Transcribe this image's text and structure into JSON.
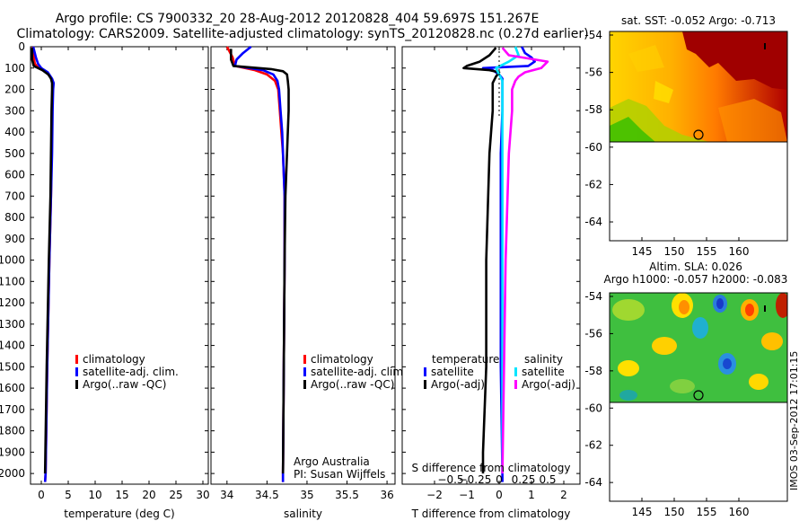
{
  "header": {
    "line1": "Argo profile: CS 7900332_20 28-Aug-2012 20120828_404 59.697S 151.267E",
    "line2": "Climatology: CARS2009. Satellite-adjusted climatology: synTS_20120828.nc (0.27d earlier)"
  },
  "colors": {
    "clim": "#ff0000",
    "sat": "#0000ff",
    "argo": "#000000",
    "sat_s": "#00e5ff",
    "argo_s": "#ff00ff"
  },
  "depth_ticks": [
    "0",
    "100",
    "200",
    "300",
    "400",
    "500",
    "600",
    "700",
    "800",
    "900",
    "1000",
    "1100",
    "1200",
    "1300",
    "1400",
    "1500",
    "1600",
    "1700",
    "1800",
    "1900",
    "2000"
  ],
  "chart_data": [
    {
      "type": "line",
      "id": "temperature",
      "xlabel": "temperature (deg C)",
      "ylabel": "depth",
      "xlim": [
        -2,
        31
      ],
      "ylim": [
        0,
        2050
      ],
      "xticks": [
        0,
        5,
        10,
        15,
        20,
        25,
        30
      ],
      "xtick_labels": [
        "0",
        "5",
        "10",
        "15",
        "20",
        "25",
        "30"
      ],
      "legend": [
        "climatology",
        "satellite-adj. clim.",
        "Argo(..raw -QC)"
      ],
      "series": [
        {
          "name": "climatology",
          "color": "#ff0000",
          "depth": [
            0,
            50,
            80,
            100,
            120,
            150,
            170,
            200,
            300,
            500,
            700,
            1000,
            1500,
            2000,
            2040
          ],
          "values": [
            -1.6,
            -1.4,
            -1.2,
            -0.5,
            1.0,
            1.9,
            2.2,
            2.1,
            2.0,
            1.9,
            1.8,
            1.5,
            1.1,
            0.8,
            0.7
          ]
        },
        {
          "name": "satellite-adj. clim.",
          "color": "#0000ff",
          "depth": [
            0,
            50,
            80,
            100,
            120,
            150,
            170,
            200,
            300,
            500,
            700,
            1000,
            1500,
            2000,
            2040
          ],
          "values": [
            -1.5,
            -1.0,
            -0.6,
            0.0,
            1.2,
            2.0,
            2.3,
            2.2,
            2.1,
            2.0,
            1.8,
            1.5,
            1.1,
            0.8,
            0.7
          ]
        },
        {
          "name": "Argo(..raw -QC)",
          "color": "#000000",
          "depth": [
            5,
            60,
            90,
            110,
            130,
            150,
            170,
            200,
            300,
            500,
            700,
            1000,
            1500,
            2000
          ],
          "values": [
            -1.7,
            -1.7,
            -1.4,
            0.2,
            1.3,
            1.8,
            2.0,
            2.0,
            1.9,
            1.8,
            1.7,
            1.4,
            1.0,
            0.7
          ]
        }
      ]
    },
    {
      "type": "line",
      "id": "salinity",
      "xlabel": "salinity",
      "ylabel": "depth",
      "xlim": [
        33.8,
        36.1
      ],
      "ylim": [
        0,
        2050
      ],
      "xticks": [
        34,
        34.5,
        35,
        35.5,
        36
      ],
      "xtick_labels": [
        "34",
        "34.5",
        "35",
        "35.5",
        "36"
      ],
      "legend": [
        "climatology",
        "satellite-adj. clim.",
        " Argo(..raw -QC)"
      ],
      "annotation": [
        "Argo Australia",
        "PI: Susan Wijffels"
      ],
      "series": [
        {
          "name": "climatology",
          "color": "#ff0000",
          "depth": [
            0,
            50,
            90,
            110,
            130,
            160,
            200,
            300,
            400,
            500,
            700,
            750,
            1000,
            1500,
            2000,
            2040
          ],
          "values": [
            34.0,
            34.07,
            34.1,
            34.35,
            34.5,
            34.6,
            34.64,
            34.66,
            34.68,
            34.7,
            34.72,
            34.72,
            34.72,
            34.71,
            34.7,
            34.7
          ]
        },
        {
          "name": "satellite-adj. clim.",
          "color": "#0000ff",
          "depth": [
            0,
            30,
            60,
            90,
            110,
            130,
            160,
            200,
            300,
            400,
            500,
            700,
            1000,
            1500,
            2000,
            2040
          ],
          "values": [
            34.3,
            34.2,
            34.12,
            34.1,
            34.45,
            34.58,
            34.63,
            34.65,
            34.67,
            34.69,
            34.7,
            34.72,
            34.72,
            34.71,
            34.7,
            34.7
          ]
        },
        {
          "name": "Argo(..raw -QC)",
          "color": "#000000",
          "depth": [
            10,
            60,
            90,
            105,
            115,
            130,
            160,
            200,
            300,
            400,
            500,
            600,
            700,
            1000,
            1500,
            2000
          ],
          "values": [
            34.05,
            34.05,
            34.08,
            34.55,
            34.7,
            34.75,
            34.76,
            34.77,
            34.77,
            34.76,
            34.75,
            34.74,
            34.73,
            34.72,
            34.71,
            34.7
          ]
        }
      ]
    },
    {
      "type": "line",
      "id": "difference",
      "xlabel": "T difference from climatology",
      "xlabel2": "S difference from climatology",
      "xlim": [
        -3,
        2.5
      ],
      "ylim": [
        0,
        2050
      ],
      "xticks": [
        -2,
        -1,
        0,
        1,
        2
      ],
      "xtick_labels": [
        "−2",
        "−1",
        "0",
        "1",
        "2"
      ],
      "xticks2": [
        -1.5,
        -0.75,
        0,
        0.75,
        1.5
      ],
      "xtick2_labels": [
        "−0.5",
        "−0.25",
        "0",
        "0.25",
        "0.5"
      ],
      "legend_left": {
        "title": "temperature",
        "items": [
          "satellite",
          "Argo(-adj)"
        ]
      },
      "legend_right": {
        "title": "salinity",
        "items": [
          "satellite",
          "Argo(-adj)"
        ]
      },
      "series": [
        {
          "name": "T satellite",
          "color": "#0000ff",
          "depth": [
            0,
            30,
            50,
            70,
            90,
            100,
            110,
            130,
            150,
            200,
            300,
            500,
            1000,
            1500,
            2000,
            2040
          ],
          "values": [
            0.7,
            0.8,
            1.0,
            1.1,
            0.9,
            -0.5,
            -0.2,
            0.0,
            0.1,
            0.1,
            0.1,
            0.05,
            0.05,
            0.05,
            0.1,
            0.1
          ]
        },
        {
          "name": "T Argo(-adj)",
          "color": "#000000",
          "depth": [
            5,
            40,
            70,
            90,
            100,
            110,
            120,
            140,
            170,
            200,
            300,
            500,
            1000,
            1500,
            1900,
            2000
          ],
          "values": [
            -0.1,
            -0.3,
            -0.6,
            -1.0,
            -1.1,
            -0.3,
            0.0,
            -0.1,
            -0.2,
            -0.2,
            -0.2,
            -0.3,
            -0.4,
            -0.4,
            -0.5,
            -0.5
          ]
        },
        {
          "name": "S satellite",
          "color": "#00e5ff",
          "depth": [
            0,
            40,
            70,
            100,
            130,
            160,
            200,
            300,
            500,
            1000,
            1500,
            2000
          ],
          "values": [
            0.5,
            0.6,
            0.3,
            -0.1,
            0.0,
            0.1,
            0.1,
            0.1,
            0.1,
            0.1,
            0.1,
            0.1
          ]
        },
        {
          "name": "S Argo(-adj)",
          "color": "#ff00ff",
          "depth": [
            5,
            40,
            70,
            100,
            120,
            140,
            160,
            200,
            300,
            500,
            1000,
            1500,
            2000
          ],
          "values": [
            0.1,
            0.3,
            1.5,
            1.3,
            0.8,
            0.6,
            0.5,
            0.4,
            0.4,
            0.3,
            0.2,
            0.15,
            0.1
          ]
        }
      ]
    }
  ],
  "maps": [
    {
      "title": "sat. SST: -0.052 Argo: -0.713",
      "title2": "",
      "yticks": [
        "-54",
        "-56",
        "-58",
        "-60",
        "-62",
        "-64"
      ],
      "xticks": [
        "145",
        "150",
        "155",
        "160"
      ],
      "kind": "sst"
    },
    {
      "title": "Altim. SLA: 0.026",
      "title2": "Argo h1000: -0.057 h2000: -0.083",
      "yticks": [
        "-54",
        "-56",
        "-58",
        "-60",
        "-62",
        "-64"
      ],
      "xticks": [
        "145",
        "150",
        "155",
        "160"
      ],
      "kind": "sla"
    }
  ],
  "footer": {
    "stamp": "IMOS 03-Sep-2012 17:01:15"
  }
}
